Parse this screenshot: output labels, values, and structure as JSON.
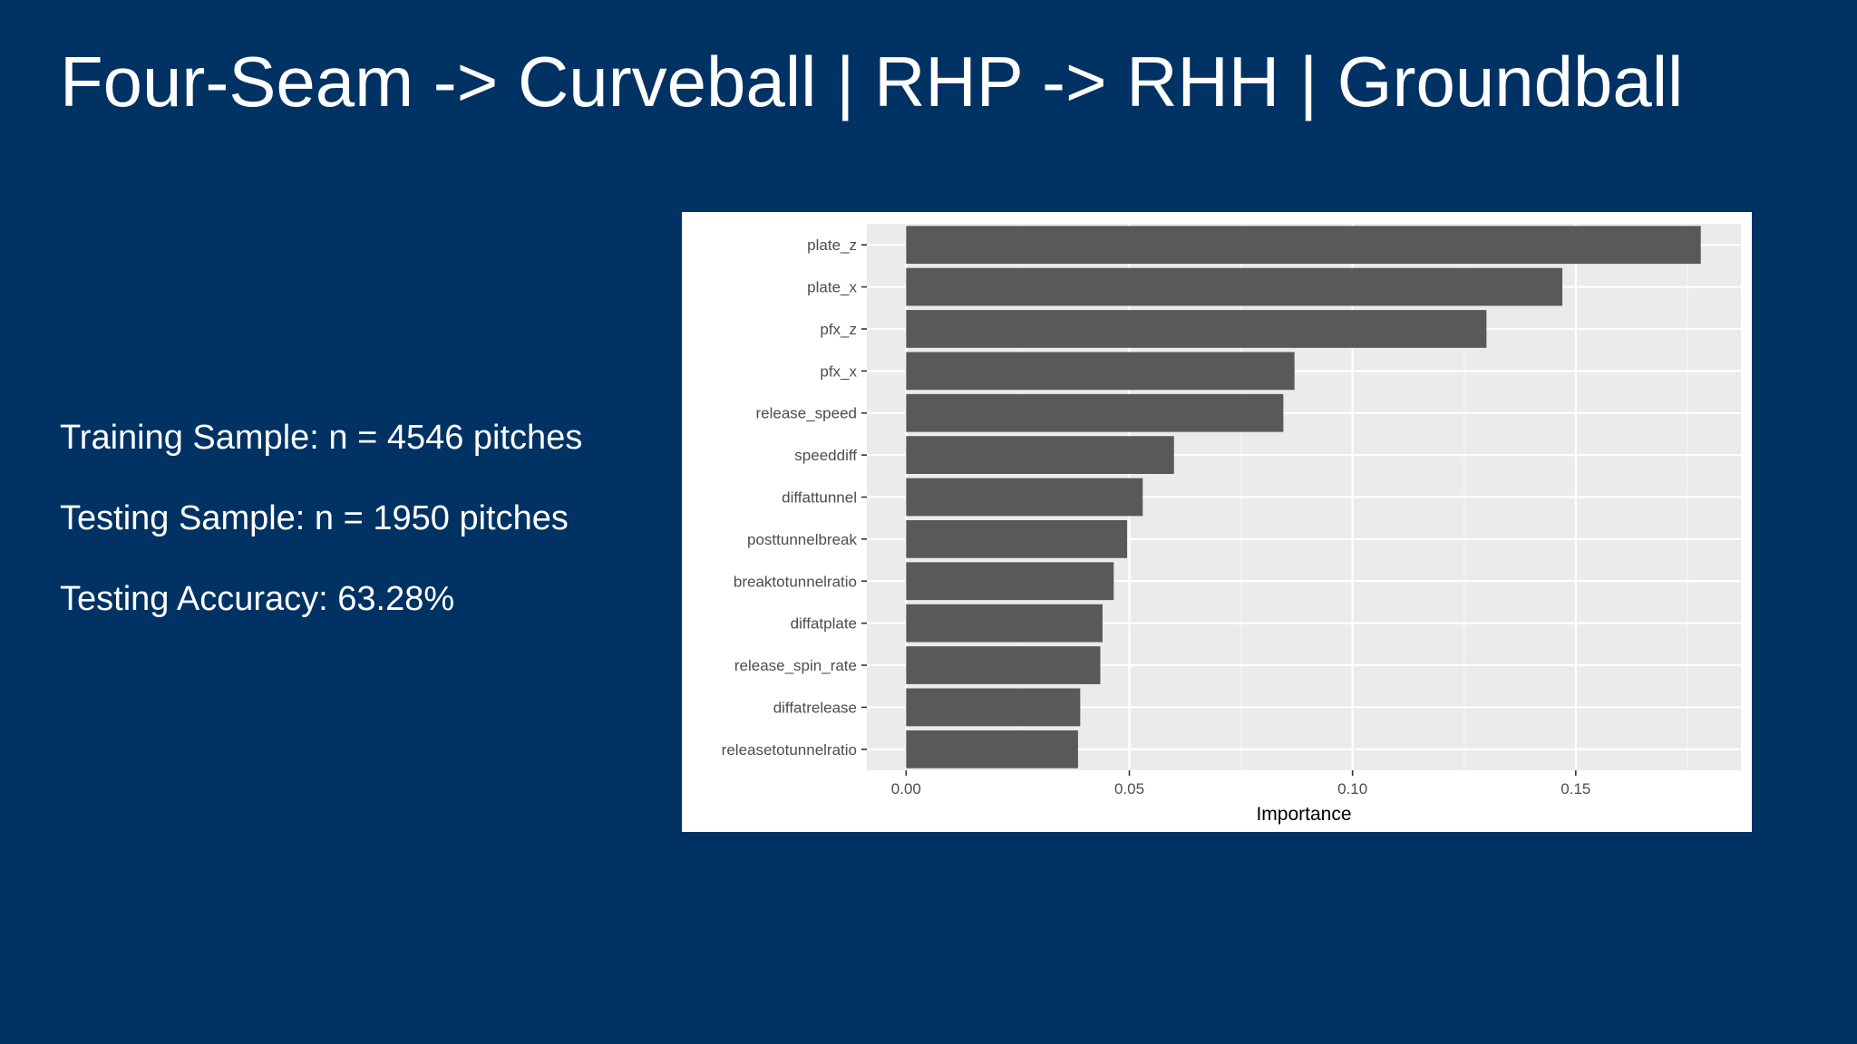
{
  "slide": {
    "title": "Four-Seam -> Curveball | RHP -> RHH | Groundball",
    "stats": [
      "Training Sample: n = 4546 pitches",
      "Testing Sample: n = 1950 pitches",
      "Testing Accuracy: 63.28%"
    ]
  },
  "chart_data": {
    "type": "bar",
    "orientation": "horizontal",
    "title": "",
    "xlabel": "Importance",
    "ylabel": "",
    "categories": [
      "plate_z",
      "plate_x",
      "pfx_z",
      "pfx_x",
      "release_speed",
      "speeddiff",
      "diffattunnel",
      "posttunnelbreak",
      "breaktotunnelratio",
      "diffatplate",
      "release_spin_rate",
      "diffatrelease",
      "releasetotunnelratio"
    ],
    "values": [
      0.178,
      0.147,
      0.13,
      0.087,
      0.0845,
      0.06,
      0.053,
      0.0495,
      0.0465,
      0.044,
      0.0435,
      0.039,
      0.0385
    ],
    "xlim": [
      -0.0088,
      0.187
    ],
    "xticks": [
      0.0,
      0.05,
      0.1,
      0.15
    ],
    "xtick_labels": [
      "0.00",
      "0.05",
      "0.10",
      "0.15"
    ],
    "grid": true,
    "legend": "none",
    "colors": {
      "bar": "#595959",
      "panel_background": "#ebebeb",
      "grid_major": "#ffffff",
      "grid_minor": "#f5f5f5"
    }
  }
}
